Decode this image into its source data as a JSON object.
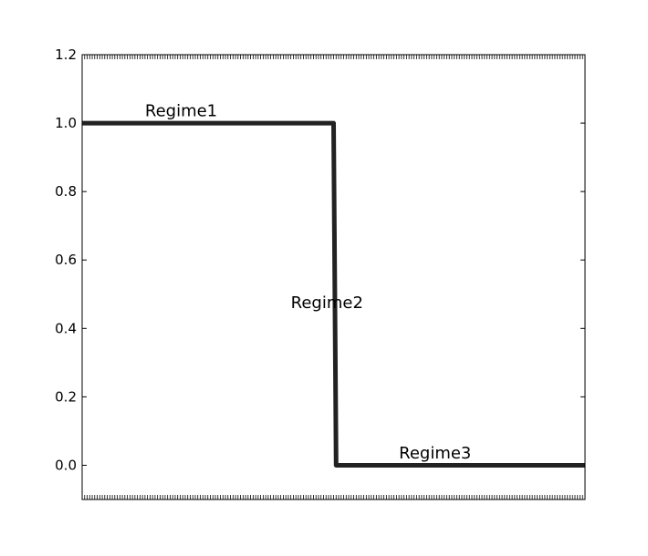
{
  "chart_data": {
    "type": "line",
    "title": "",
    "xlabel": "",
    "ylabel": "",
    "xlim": [
      0,
      1
    ],
    "ylim": [
      -0.1,
      1.2
    ],
    "yticks": [
      0.0,
      0.2,
      0.4,
      0.6,
      0.8,
      1.0,
      1.2
    ],
    "ytick_labels": [
      "0.0",
      "0.2",
      "0.4",
      "0.6",
      "0.8",
      "1.0",
      "1.2"
    ],
    "x_tick_labels_shown": false,
    "grid": false,
    "series": [
      {
        "color": "#222222",
        "x": [
          0.0,
          0.5,
          0.505,
          1.0
        ],
        "y": [
          1.0,
          1.0,
          0.0,
          0.0
        ]
      }
    ],
    "annotations": [
      {
        "text": "Regime1",
        "x": 0.125,
        "y": 1.02
      },
      {
        "text": "Regime2",
        "x": 0.415,
        "y": 0.46
      },
      {
        "text": "Regime3",
        "x": 0.63,
        "y": 0.02
      }
    ]
  }
}
